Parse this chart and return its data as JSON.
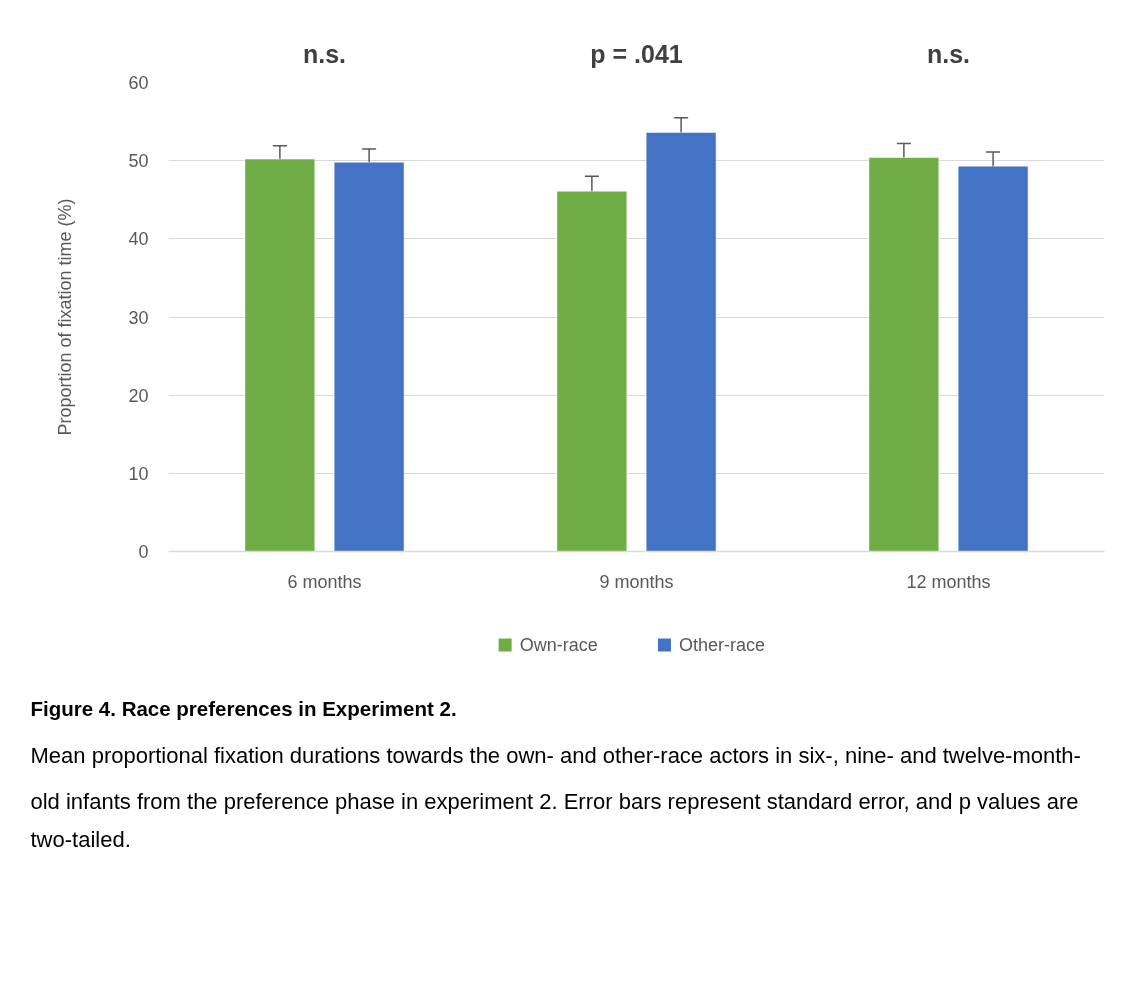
{
  "chart_data": {
    "type": "bar",
    "title": "Figure 4. Race preferences in Experiment 2.",
    "ylabel": "Proportion of fixation time (%)",
    "categories": [
      "6 months",
      "9 months",
      "12 months"
    ],
    "series": [
      {
        "name": "Own-race",
        "color": "#70ad47",
        "values": [
          50.2,
          46.1,
          50.4
        ],
        "errors": [
          1.7,
          1.9,
          1.8
        ]
      },
      {
        "name": "Other-race",
        "color": "#4472c4",
        "values": [
          49.8,
          53.6,
          49.3
        ],
        "errors": [
          1.7,
          1.9,
          1.8
        ]
      }
    ],
    "ylim": [
      0,
      60
    ],
    "yticks": [
      0,
      10,
      20,
      30,
      40,
      50,
      60
    ],
    "grid": "y",
    "legend": "bottom",
    "annotations": [
      "n.s.",
      "p = .041",
      "n.s.",
      "Mean proportional fixation durations towards the own- and other-race actors in six-, nine- and twelve-month-old infants from the preference phase in experiment 2. Error bars represent standard error, and p values are two-tailed."
    ]
  }
}
